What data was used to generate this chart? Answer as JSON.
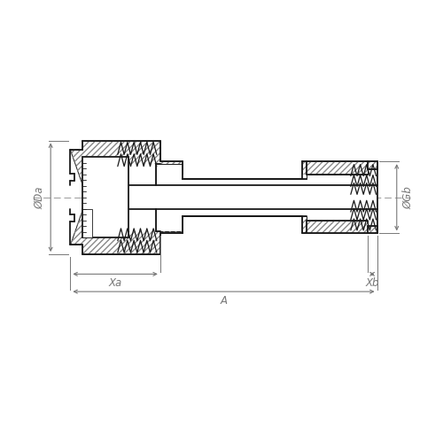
{
  "bg_color": "#ffffff",
  "line_color": "#1a1a1a",
  "dim_color": "#777777",
  "hatch_color": "#555555",
  "dim_labels": {
    "Da": "ØDa",
    "Gb": "ØGb",
    "Xa": "Xa",
    "Xb": "Xb",
    "A": "A"
  },
  "canvas_xlim": [
    0,
    10
  ],
  "canvas_ylim": [
    0,
    10
  ]
}
